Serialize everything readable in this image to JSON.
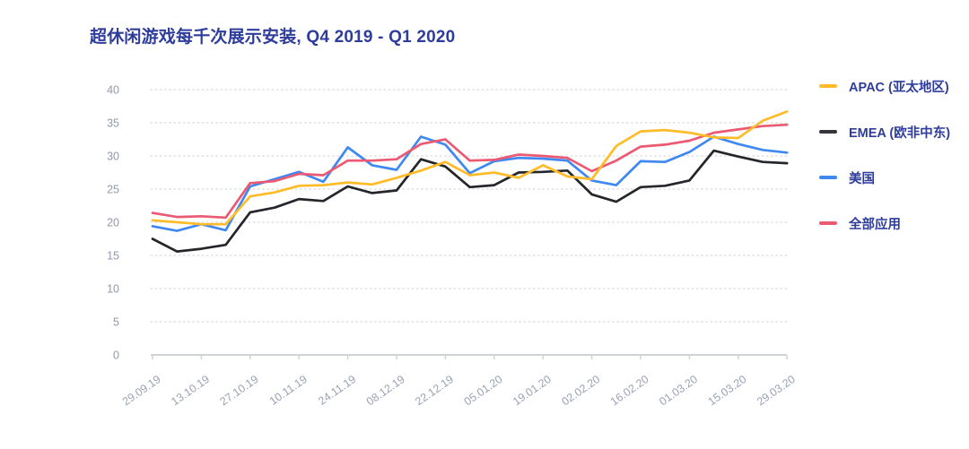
{
  "title": {
    "text": "超休闲游戏每千次展示安装, Q4 2019 - Q1 2020",
    "color": "#2e3d9b"
  },
  "legend": {
    "items": [
      {
        "label": "APAC (亚太地区)",
        "color": "#FFBB28"
      },
      {
        "label": "EMEA (欧非中东)",
        "color": "#33363c"
      },
      {
        "label": "美国",
        "color": "#3F88F2"
      },
      {
        "label": "全部应用",
        "color": "#EB5A72"
      }
    ]
  },
  "axes": {
    "y_tick_color": "#8f99ab",
    "x_tick_color": "#9aa3b5",
    "grid_color": "#d9d9de",
    "baseline_color": "#cfd2d6"
  },
  "chart_data": {
    "type": "line",
    "title": "超休闲游戏每千次展示安装, Q4 2019 - Q1 2020",
    "x_tick_labels": [
      "29.09.19",
      "13.10.19",
      "27.10.19",
      "10.11.19",
      "24.11.19",
      "08.12.19",
      "22.12.19",
      "05.01.20",
      "19.01.20",
      "02.02.20",
      "16.02.20",
      "01.03.20",
      "15.03.20",
      "29.03.20"
    ],
    "points_per_series": 27,
    "label_every_n_points": 2,
    "y_ticks": [
      0,
      5,
      10,
      15,
      20,
      25,
      30,
      35,
      40
    ],
    "ylim": [
      0,
      40
    ],
    "grid": "horizontal-dotted",
    "legend_position": "right",
    "series": [
      {
        "name": "APAC (亚太地区)",
        "color": "#FFBB28",
        "values": [
          20.3,
          20.0,
          19.7,
          19.7,
          23.9,
          24.5,
          25.5,
          25.6,
          26.0,
          25.7,
          26.7,
          27.8,
          29.1,
          27.1,
          27.5,
          26.7,
          28.6,
          26.9,
          26.5,
          31.5,
          33.7,
          33.9,
          33.5,
          32.8,
          32.7,
          35.3,
          36.7
        ]
      },
      {
        "name": "EMEA (欧非中东)",
        "color": "#24262b",
        "values": [
          17.5,
          15.6,
          16.0,
          16.6,
          21.5,
          22.2,
          23.5,
          23.2,
          25.4,
          24.4,
          24.8,
          29.5,
          28.4,
          25.3,
          25.6,
          27.5,
          27.6,
          27.8,
          24.2,
          23.1,
          25.3,
          25.5,
          26.3,
          30.8,
          29.9,
          29.1,
          28.9
        ]
      },
      {
        "name": "美国",
        "color": "#3F88F2",
        "values": [
          19.4,
          18.7,
          19.7,
          18.8,
          25.4,
          26.5,
          27.6,
          26.1,
          31.3,
          28.6,
          27.9,
          32.9,
          31.7,
          27.4,
          29.2,
          29.7,
          29.6,
          29.3,
          26.3,
          25.6,
          29.2,
          29.1,
          30.6,
          32.9,
          31.8,
          30.9,
          30.5
        ]
      },
      {
        "name": "全部应用",
        "color": "#EB5A72",
        "values": [
          21.4,
          20.8,
          20.9,
          20.7,
          25.9,
          26.2,
          27.3,
          27.1,
          29.3,
          29.3,
          29.5,
          31.8,
          32.5,
          29.3,
          29.4,
          30.2,
          30.0,
          29.7,
          27.7,
          29.3,
          31.4,
          31.7,
          32.3,
          33.5,
          34.0,
          34.5,
          34.7
        ]
      }
    ]
  }
}
